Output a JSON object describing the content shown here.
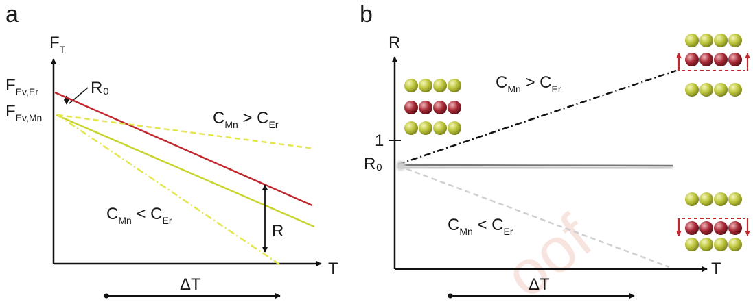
{
  "panel_a": {
    "label": "a",
    "y_axis": {
      "main": "F",
      "sub": "T"
    },
    "y_tick_top": {
      "main": "F",
      "sub": "Ev,Er"
    },
    "y_tick_bottom": {
      "main": "F",
      "sub": "Ev,Mn"
    },
    "r0": "R₀",
    "x_axis": "T",
    "r_label": "R",
    "ann_upper": {
      "c1": "C",
      "s1": "Mn",
      "op": " > ",
      "c2": "C",
      "s2": "Er"
    },
    "ann_lower": {
      "c1": "C",
      "s1": "Mn",
      "op": " < ",
      "c2": "C",
      "s2": "Er"
    },
    "delta": "ΔT"
  },
  "panel_b": {
    "label": "b",
    "y_axis": "R",
    "tick_one": "1",
    "r0": "R₀",
    "x_axis": "T",
    "ann_upper": {
      "c1": "C",
      "s1": "Mn",
      "op": " > ",
      "c2": "C",
      "s2": "Er"
    },
    "ann_lower": {
      "c1": "C",
      "s1": "Mn",
      "op": " < ",
      "c2": "C",
      "s2": "Er"
    },
    "delta": "ΔT"
  },
  "watermark": "oof",
  "colors": {
    "red": "#c0282e",
    "yellow": "#c7d42c",
    "yellow_dash": "#e3e64d",
    "black": "#111111",
    "gray": "#777777",
    "light_gray": "#cfcfcf",
    "atom_yellow": "#bcc43a",
    "atom_red": "#a82a36",
    "arrow_red": "#c0282e"
  }
}
